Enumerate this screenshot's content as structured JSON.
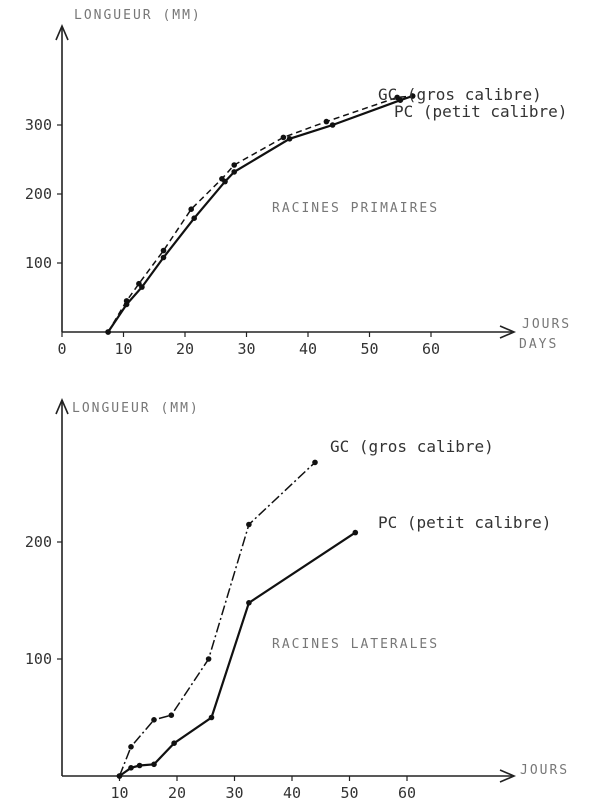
{
  "chart_data": [
    {
      "type": "line",
      "annotation": "RACINES PRIMAIRES",
      "ylabel": "LONGUEUR (MM)",
      "xlabel": [
        "JOURS",
        "DAYS"
      ],
      "x_ticks": [
        "0",
        "10",
        "20",
        "30",
        "40",
        "50",
        "60"
      ],
      "y_ticks": [
        "100",
        "200",
        "300"
      ],
      "xlim": [
        0,
        68
      ],
      "ylim": [
        0,
        380
      ],
      "series": [
        {
          "name": "GC",
          "label": "GC (gros calibre)",
          "style": "dashed",
          "x": [
            7.5,
            10.5,
            12.5,
            16.5,
            21,
            26,
            28,
            36,
            43,
            54.5,
            57
          ],
          "y": [
            0,
            45,
            70,
            118,
            178,
            222,
            242,
            282,
            305,
            340,
            342
          ]
        },
        {
          "name": "PC",
          "label": "PC (petit calibre)",
          "style": "solid",
          "x": [
            7.5,
            10.5,
            13,
            16.5,
            21.5,
            26.5,
            28,
            37,
            44,
            55,
            57
          ],
          "y": [
            0,
            40,
            65,
            108,
            165,
            218,
            232,
            280,
            300,
            336,
            342
          ]
        }
      ]
    },
    {
      "type": "line",
      "annotation": "RACINES LATERALES",
      "ylabel": "LONGUEUR (MM)",
      "xlabel": "JOURS",
      "x_ticks": [
        "10",
        "20",
        "30",
        "40",
        "50",
        "60"
      ],
      "y_ticks": [
        "100",
        "200"
      ],
      "xlim": [
        0,
        68
      ],
      "ylim": [
        0,
        290
      ],
      "series": [
        {
          "name": "GC",
          "label": "GC (gros calibre)",
          "style": "dash-dot",
          "x": [
            10,
            12,
            16,
            19,
            25.5,
            32.5,
            44
          ],
          "y": [
            0,
            25,
            48,
            52,
            100,
            215,
            268
          ]
        },
        {
          "name": "PC",
          "label": "PC (petit calibre)",
          "style": "solid",
          "x": [
            10,
            12,
            13.5,
            16,
            19.5,
            26,
            32.5,
            51
          ],
          "y": [
            0,
            7,
            9,
            10,
            28,
            50,
            148,
            208
          ]
        }
      ]
    }
  ]
}
